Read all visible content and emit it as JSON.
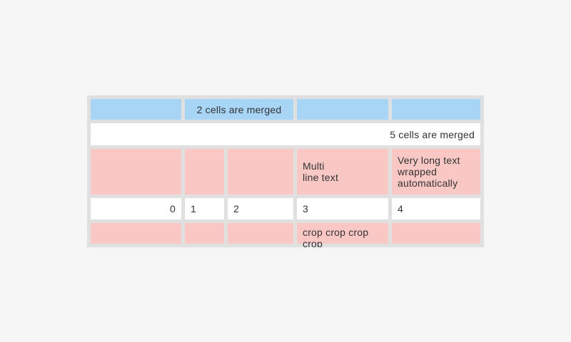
{
  "table": {
    "row_blue": {
      "merged_cell_label": "2 cells are merged"
    },
    "row_merged": {
      "label": "5 cells are merged"
    },
    "row_pink_tall": {
      "multiline_label": "Multi\nline text",
      "wrapped_label": "Very long text wrapped automatically"
    },
    "row_numbers": {
      "cells": [
        "0",
        "1",
        "2",
        "3",
        "4"
      ]
    },
    "row_cropped": {
      "crop_label": "crop crop crop crop"
    },
    "colors": {
      "header_blue": "#a8d5f6",
      "row_pink": "#fac8c4",
      "cell_white": "#ffffff",
      "table_bg": "#e0e0e0",
      "page_bg": "#f5f5f5",
      "text": "#333333"
    }
  }
}
